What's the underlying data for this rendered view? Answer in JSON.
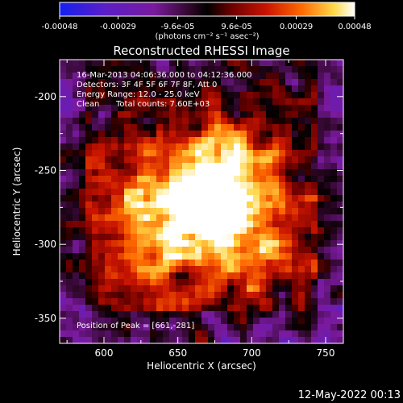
{
  "colorbar": {
    "ticks": [
      "-0.00048",
      "-0.00029",
      "-9.6e-05",
      "9.6e-05",
      "0.00029",
      "0.00048"
    ],
    "tick_values": [
      -0.00048,
      -0.00029,
      -9.6e-05,
      9.6e-05,
      0.00029,
      0.00048
    ],
    "range": [
      -0.00048,
      0.00048
    ],
    "unit_label": "(photons cm⁻² s⁻¹ asec⁻²)",
    "colors": [
      "#1420f0",
      "#5a1ec8",
      "#7a1a9e",
      "#3a0a30",
      "#000000",
      "#6a0000",
      "#c81400",
      "#ff6a00",
      "#ffd84a",
      "#ffffff"
    ]
  },
  "chart_data": {
    "type": "heatmap",
    "title": "Reconstructed RHESSI Image",
    "xlabel": "Heliocentric X (arcsec)",
    "ylabel": "Heliocentric Y (arcsec)",
    "xlim": [
      570,
      762
    ],
    "ylim": [
      -367,
      -175
    ],
    "xticks": [
      600,
      650,
      700,
      750
    ],
    "yticks": [
      -200,
      -250,
      -300,
      -350
    ],
    "peak": [
      661,
      -281
    ],
    "annotations": [
      "16-Mar-2013 04:06:36.000 to 04:12:36.000",
      "Detectors: 3F 4F 5F 6F 7F 8F, Att 0",
      "Energy Range: 12.0 - 25.0 keV",
      "Clean",
      "Total counts: 7.60E+03",
      "Position of Peak = [661,-281]"
    ]
  },
  "footer": {
    "timestamp": "12-May-2022 00:13"
  }
}
